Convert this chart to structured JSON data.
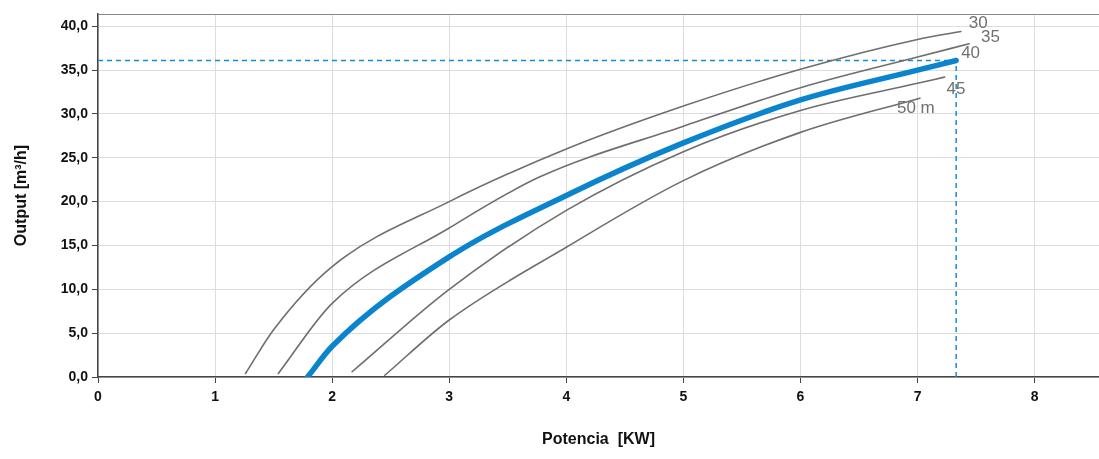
{
  "chart_data": {
    "type": "line",
    "xlabel": "Potencia  [KW]",
    "ylabel": "Output [m³/h]",
    "xlim": [
      0,
      8.55
    ],
    "ylim": [
      0,
      41.4
    ],
    "xticks": [
      0,
      1,
      2,
      3,
      4,
      5,
      6,
      7,
      8
    ],
    "yticks": [
      {
        "value": 0,
        "label": "0,0"
      },
      {
        "value": 5,
        "label": "5,0"
      },
      {
        "value": 10,
        "label": "10,0"
      },
      {
        "value": 15,
        "label": "15,0"
      },
      {
        "value": 20,
        "label": "20,0"
      },
      {
        "value": 25,
        "label": "25,0"
      },
      {
        "value": 30,
        "label": "30,0"
      },
      {
        "value": 35,
        "label": "35,0"
      },
      {
        "value": 40,
        "label": "40,0"
      }
    ],
    "grid": true,
    "legend": false,
    "marker": "none",
    "line_style": "solid",
    "series": [
      {
        "name": "30",
        "color": "#6e6e6e",
        "x": [
          1.26,
          1.5,
          2,
          3,
          4,
          5,
          6,
          7,
          7.37
        ],
        "values": [
          0.4,
          5.4,
          12.6,
          20,
          26,
          30.9,
          35.1,
          38.5,
          39.4
        ]
      },
      {
        "name": "35",
        "color": "#6e6e6e",
        "x": [
          1.54,
          2,
          3,
          3.77,
          5,
          6,
          7,
          7.44
        ],
        "values": [
          0.4,
          8.4,
          17,
          22.8,
          28.6,
          33,
          36.5,
          38
        ]
      },
      {
        "name": "40",
        "color": "#0a84cc",
        "x": [
          1.79,
          2,
          3,
          4,
          5,
          6,
          7,
          7.33
        ],
        "values": [
          0,
          3.5,
          13.7,
          20.7,
          26.7,
          31.6,
          35,
          36.1
        ]
      },
      {
        "name": "45",
        "color": "#6e6e6e",
        "x": [
          2.17,
          3,
          4,
          5,
          6,
          7,
          7.23
        ],
        "values": [
          0.6,
          10,
          19,
          25.7,
          30.4,
          33.5,
          34.2
        ]
      },
      {
        "name": "50 m",
        "color": "#6e6e6e",
        "x": [
          2.45,
          3,
          4,
          5,
          6,
          7.02
        ],
        "values": [
          0.2,
          6.5,
          14.8,
          22.4,
          27.9,
          31.8
        ]
      }
    ],
    "ref_lines": [
      {
        "axis": "y",
        "value": 36.1,
        "color": "#1a8ad4",
        "line_style": "dashed"
      },
      {
        "axis": "x",
        "value": 7.33,
        "color": "#1a8ad4",
        "line_style": "dashed"
      }
    ]
  }
}
